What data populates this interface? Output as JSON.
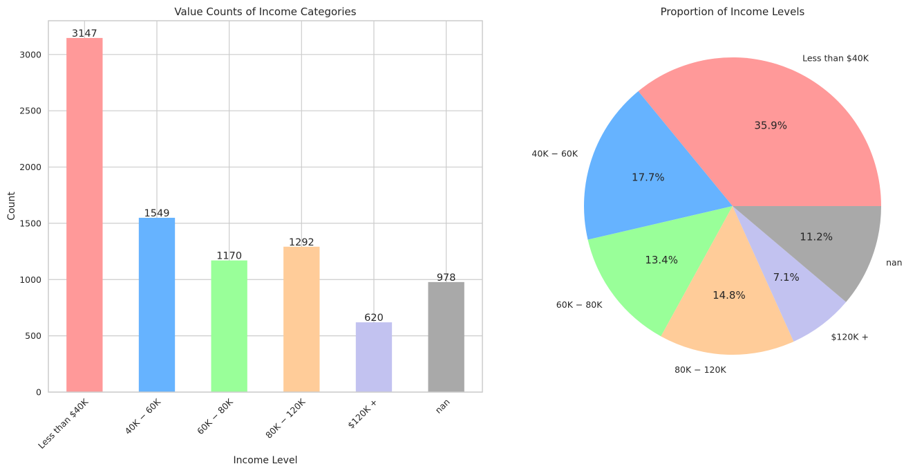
{
  "chart_data": [
    {
      "type": "bar",
      "title": "Value Counts of Income Categories",
      "xlabel": "Income Level",
      "ylabel": "Count",
      "categories": [
        "Less than $40K",
        "$40K - $60K",
        "$60K - $80K",
        "$80K - $120K",
        "$120K +",
        "nan"
      ],
      "tick_labels": [
        "Less than $40K",
        "40K − 60K",
        "60K − 80K",
        "80K − 120K",
        "$120K +",
        "nan"
      ],
      "values": [
        3147,
        1549,
        1170,
        1292,
        620,
        978
      ],
      "colors": [
        "#ff9999",
        "#66b3ff",
        "#99ff99",
        "#ffcc99",
        "#c2c2f0",
        "#a9a9a9"
      ],
      "ylim": [
        0,
        3300
      ],
      "yticks": [
        0,
        500,
        1000,
        1500,
        2000,
        2500,
        3000
      ],
      "grid": true
    },
    {
      "type": "pie",
      "title": "Proportion of Income Levels",
      "categories": [
        "Less than $40K",
        "$40K - $60K",
        "$60K - $80K",
        "$80K - $120K",
        "$120K +",
        "nan"
      ],
      "labels": [
        "Less than $40K",
        "40K − 60K",
        "60K − 80K",
        "80K − 120K",
        "$120K +",
        "nan"
      ],
      "values": [
        3147,
        1549,
        1170,
        1292,
        620,
        978
      ],
      "percent_labels": [
        "35.9%",
        "17.7%",
        "13.4%",
        "14.8%",
        "7.1%",
        "11.2%"
      ],
      "colors": [
        "#ff9999",
        "#66b3ff",
        "#99ff99",
        "#ffcc99",
        "#c2c2f0",
        "#a9a9a9"
      ]
    }
  ]
}
